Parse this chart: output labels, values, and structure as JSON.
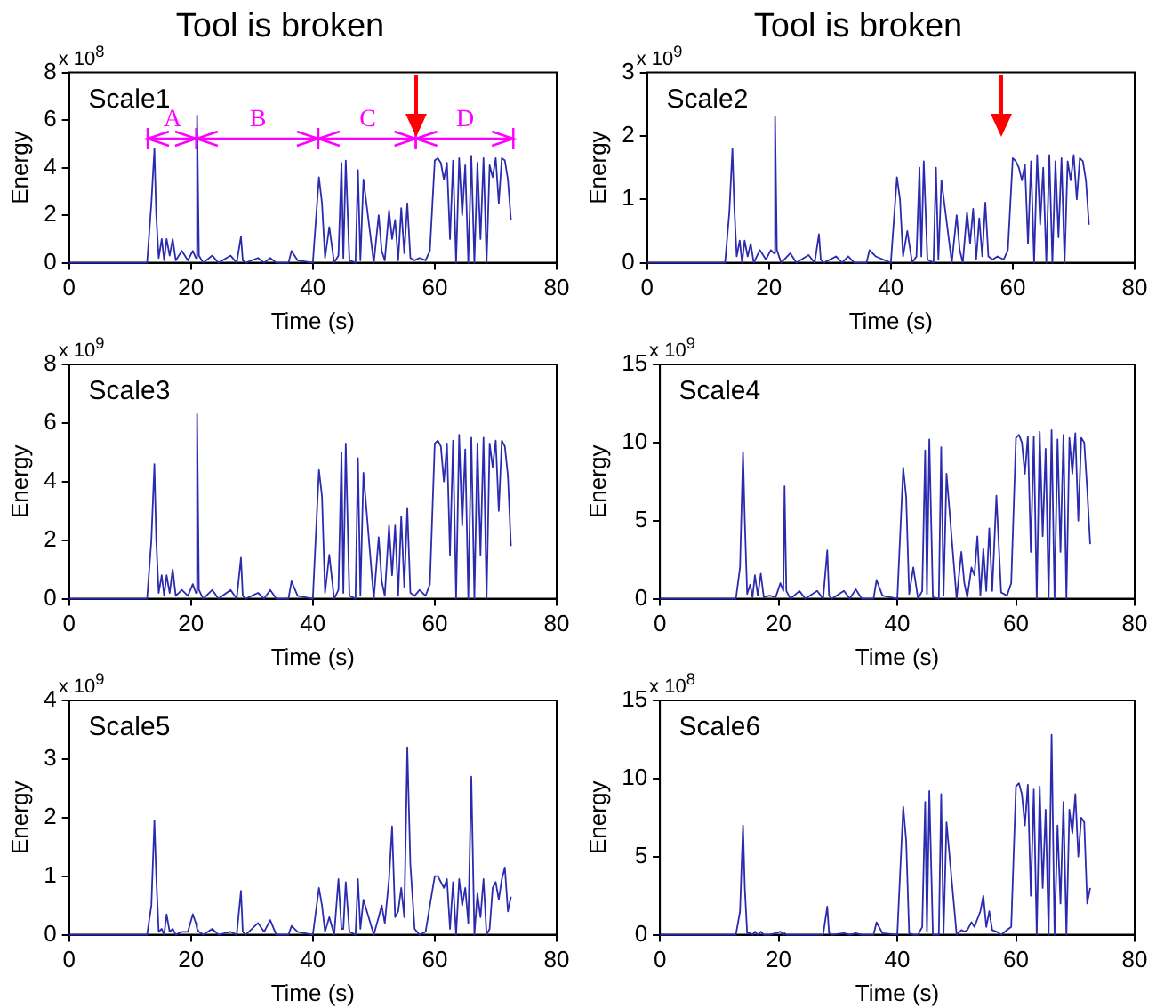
{
  "chart_data": [
    {
      "type": "line",
      "title": "Tool is broken",
      "xlabel": "Time (s)",
      "ylabel": "Energy",
      "annotations": [
        "Scale1",
        "x 10$^{8}$",
        "A",
        "B",
        "C",
        "D"
      ],
      "xlim": [
        0,
        80
      ],
      "xticks": [
        0,
        20,
        40,
        60,
        80
      ],
      "ylim": [
        0,
        8
      ],
      "yticks": [
        0,
        2,
        4,
        6,
        8
      ],
      "grid": false,
      "legend": false,
      "x": [
        0,
        12.8,
        13.5,
        14,
        14.3,
        14.7,
        15.2,
        15.6,
        16,
        16.5,
        17,
        17.5,
        18.5,
        19.5,
        20.3,
        20.8,
        21,
        21.3,
        22,
        23.5,
        24.5,
        26.5,
        27.5,
        28.2,
        28.5,
        29,
        31,
        32,
        33,
        34,
        36,
        36.5,
        37.5,
        40,
        41,
        41.5,
        42,
        42.7,
        43.5,
        44.2,
        44.7,
        45,
        45.4,
        46,
        47,
        47.4,
        47.8,
        48.3,
        50,
        50.8,
        51.3,
        51.8,
        52.5,
        53,
        53.5,
        54,
        54.5,
        55,
        55.5,
        56,
        56.7,
        57.5,
        58.5,
        59.2,
        60,
        60.5,
        61,
        61.5,
        62,
        62.5,
        63,
        63.5,
        64,
        64.5,
        65,
        65.5,
        66,
        66.5,
        67,
        67.5,
        68,
        68.5,
        69,
        69.5,
        70,
        70.5,
        71,
        71.5,
        72,
        72.5
      ],
      "series": [
        {
          "color": "#2b2bb0",
          "values": [
            0,
            0,
            2.5,
            4.8,
            2,
            0.2,
            1,
            0.1,
            1,
            0.3,
            1,
            0.1,
            0.5,
            0.1,
            0.5,
            0.2,
            6.2,
            0.3,
            0,
            0.3,
            0,
            0.3,
            0,
            1.1,
            0.1,
            0,
            0.2,
            0,
            0.2,
            0,
            0,
            0.5,
            0.1,
            0,
            3.6,
            2.5,
            0.2,
            1.5,
            0,
            0.3,
            4.2,
            0.2,
            4.3,
            0.1,
            0,
            3.9,
            0.1,
            3.5,
            0,
            2,
            0.5,
            0.1,
            2.2,
            1,
            1.8,
            0.1,
            2.3,
            0.4,
            2.5,
            0.2,
            0.1,
            0.2,
            0.1,
            0.5,
            4.3,
            4.4,
            4.2,
            3.5,
            4.2,
            1,
            4.3,
            0,
            4.4,
            2,
            4.1,
            0,
            4.5,
            0,
            4.2,
            1,
            4.4,
            0,
            4.1,
            3.6,
            4.4,
            2.5,
            4.4,
            4.3,
            3.5,
            1.8
          ]
        }
      ]
    },
    {
      "type": "line",
      "title": "Tool is broken",
      "xlabel": "Time (s)",
      "ylabel": "Energy",
      "annotations": [
        "Scale2",
        "x 10$^{9}$"
      ],
      "xlim": [
        0,
        80
      ],
      "xticks": [
        0,
        20,
        40,
        60,
        80
      ],
      "ylim": [
        0,
        3
      ],
      "yticks": [
        0,
        1,
        2,
        3
      ],
      "grid": false,
      "legend": false,
      "x": [
        0,
        12.8,
        13.5,
        14,
        14.3,
        14.7,
        15.2,
        15.6,
        16,
        16.5,
        17,
        17.5,
        18.5,
        19.5,
        20.3,
        20.8,
        21,
        21.3,
        22,
        23.5,
        24.5,
        26.5,
        27.5,
        28.2,
        28.5,
        29,
        31,
        32,
        33,
        34,
        36,
        36.5,
        37.5,
        40,
        41,
        41.5,
        42,
        42.7,
        43.5,
        44.2,
        44.7,
        45,
        45.4,
        46,
        47,
        47.4,
        47.8,
        48.3,
        50,
        50.8,
        51.3,
        51.8,
        52.5,
        53,
        53.5,
        54,
        54.5,
        55,
        55.5,
        56,
        56.7,
        57.5,
        58.5,
        59.2,
        60,
        60.5,
        61,
        61.5,
        62,
        62.5,
        63,
        63.5,
        64,
        64.5,
        65,
        65.5,
        66,
        66.5,
        67,
        67.5,
        68,
        68.5,
        69,
        69.5,
        70,
        70.5,
        71,
        71.5,
        72,
        72.5
      ],
      "series": [
        {
          "color": "#2b2bb0",
          "values": [
            0,
            0,
            0.8,
            1.8,
            0.9,
            0.1,
            0.35,
            0,
            0.35,
            0.1,
            0.3,
            0,
            0.2,
            0.05,
            0.2,
            0.15,
            2.3,
            0.2,
            0,
            0.15,
            0,
            0.12,
            0,
            0.45,
            0.05,
            0,
            0.1,
            0,
            0.1,
            0,
            0,
            0.2,
            0.1,
            0,
            1.35,
            1,
            0.1,
            0.5,
            0,
            0.1,
            1.5,
            0.1,
            1.6,
            0.05,
            0,
            1.5,
            0.05,
            1.3,
            0,
            0.75,
            0.2,
            0,
            0.8,
            0.3,
            0.85,
            0.05,
            0.7,
            0.1,
            0.95,
            0.1,
            0.05,
            0.1,
            0.05,
            0.2,
            1.65,
            1.6,
            1.5,
            1.3,
            1.55,
            0.3,
            1.6,
            0,
            1.7,
            0.6,
            1.5,
            0,
            1.7,
            0,
            1.6,
            0.4,
            1.65,
            0,
            1.6,
            1.3,
            1.7,
            1,
            1.65,
            1.6,
            1.3,
            0.6
          ]
        }
      ]
    },
    {
      "type": "line",
      "xlabel": "Time (s)",
      "ylabel": "Energy",
      "annotations": [
        "Scale3",
        "x 10$^{9}$"
      ],
      "xlim": [
        0,
        80
      ],
      "xticks": [
        0,
        20,
        40,
        60,
        80
      ],
      "ylim": [
        0,
        8
      ],
      "yticks": [
        0,
        2,
        4,
        6,
        8
      ],
      "grid": false,
      "legend": false,
      "x": [
        0,
        12.8,
        13.5,
        14,
        14.3,
        14.7,
        15.2,
        15.6,
        16,
        16.5,
        17,
        17.5,
        18.5,
        19.5,
        20.3,
        20.8,
        21,
        21.3,
        22,
        23.5,
        24.5,
        26.5,
        27.5,
        28.2,
        28.5,
        29,
        31,
        32,
        33,
        34,
        36,
        36.5,
        37.5,
        40,
        41,
        41.5,
        42,
        42.7,
        43.5,
        44.2,
        44.7,
        45,
        45.4,
        46,
        47,
        47.4,
        47.8,
        48.3,
        50,
        50.8,
        51.3,
        51.8,
        52.5,
        53,
        53.5,
        54,
        54.5,
        55,
        55.5,
        56,
        56.7,
        57.5,
        58.5,
        59.2,
        60,
        60.5,
        61,
        61.5,
        62,
        62.5,
        63,
        63.5,
        64,
        64.5,
        65,
        65.5,
        66,
        66.5,
        67,
        67.5,
        68,
        68.5,
        69,
        69.5,
        70,
        70.5,
        71,
        71.5,
        72,
        72.5
      ],
      "series": [
        {
          "color": "#2b2bb0",
          "values": [
            0,
            0,
            2,
            4.6,
            2,
            0.2,
            0.8,
            0.1,
            0.8,
            0.2,
            1,
            0.1,
            0.3,
            0.1,
            0.5,
            0.2,
            6.3,
            0.3,
            0,
            0.3,
            0,
            0.3,
            0,
            1.4,
            0.1,
            0,
            0.2,
            0,
            0.3,
            0,
            0,
            0.6,
            0.1,
            0,
            4.4,
            3.5,
            0.2,
            1.5,
            0,
            0.3,
            5,
            0.2,
            5.3,
            0.1,
            0,
            4.8,
            0.1,
            4.3,
            0,
            2.1,
            0.6,
            0.1,
            2.5,
            0.8,
            2.5,
            0.1,
            2.8,
            0.4,
            3.1,
            0.2,
            0.1,
            0.3,
            0.1,
            0.5,
            5.3,
            5.4,
            5.2,
            4,
            5.3,
            1.5,
            5.4,
            0,
            5.6,
            2.5,
            5.1,
            0,
            5.5,
            0,
            5.3,
            1.5,
            5.5,
            0,
            5.3,
            4.5,
            5.4,
            3,
            5.4,
            5.2,
            4.2,
            1.8
          ]
        }
      ]
    },
    {
      "type": "line",
      "xlabel": "Time (s)",
      "ylabel": "Energy",
      "annotations": [
        "Scale4",
        "x 10$^{9}$"
      ],
      "xlim": [
        0,
        80
      ],
      "xticks": [
        0,
        20,
        40,
        60,
        80
      ],
      "ylim": [
        0,
        15
      ],
      "yticks": [
        0,
        5,
        10,
        15
      ],
      "grid": false,
      "legend": false,
      "x": [
        0,
        12.8,
        13.5,
        14,
        14.3,
        14.7,
        15.2,
        15.6,
        16,
        16.5,
        17,
        17.5,
        18.5,
        19.5,
        20.3,
        20.8,
        21,
        21.3,
        22,
        23.5,
        24.5,
        26.5,
        27.5,
        28.2,
        28.5,
        29,
        31,
        32,
        33,
        34,
        36,
        36.5,
        37.5,
        40,
        41,
        41.5,
        42,
        42.7,
        43.5,
        44.2,
        44.7,
        45,
        45.4,
        46,
        47,
        47.4,
        47.8,
        48.3,
        50,
        50.8,
        51.3,
        51.8,
        52.5,
        53,
        53.5,
        54,
        54.5,
        55,
        55.5,
        56,
        56.7,
        57.5,
        58.5,
        59.2,
        60,
        60.5,
        61,
        61.5,
        62,
        62.5,
        63,
        63.5,
        64,
        64.5,
        65,
        65.5,
        66,
        66.5,
        67,
        67.5,
        68,
        68.5,
        69,
        69.5,
        70,
        70.5,
        71,
        71.5,
        72,
        72.5
      ],
      "series": [
        {
          "color": "#2b2bb0",
          "values": [
            0,
            0,
            2,
            9.4,
            5,
            0.3,
            0.9,
            0.1,
            1.5,
            0.2,
            1.6,
            0.1,
            0.2,
            0.1,
            1,
            0.5,
            7.2,
            0.5,
            0,
            0.5,
            0,
            0.5,
            0,
            3.1,
            0.2,
            0,
            0.5,
            0,
            0.6,
            0,
            0,
            1.2,
            0.2,
            0,
            8.4,
            6.5,
            0.3,
            2,
            0,
            0.5,
            9.5,
            0.3,
            10.2,
            0.1,
            0,
            9.7,
            0.2,
            8,
            0,
            3,
            1,
            0.1,
            2,
            1.5,
            4,
            0.2,
            3.2,
            0.5,
            4.5,
            0.5,
            6.6,
            0.4,
            0.2,
            1,
            10.3,
            10.5,
            10,
            8,
            10.4,
            3,
            10.4,
            0,
            10.7,
            4,
            9.6,
            0,
            10.8,
            0,
            10.2,
            3,
            10.5,
            0,
            10.3,
            8,
            10.6,
            5,
            10.3,
            10,
            7,
            3.5
          ]
        }
      ]
    },
    {
      "type": "line",
      "xlabel": "Time (s)",
      "ylabel": "Energy",
      "annotations": [
        "Scale5",
        "x 10$^{9}$"
      ],
      "xlim": [
        0,
        80
      ],
      "xticks": [
        0,
        20,
        40,
        60,
        80
      ],
      "ylim": [
        0,
        4
      ],
      "yticks": [
        0,
        1,
        2,
        3,
        4
      ],
      "grid": false,
      "legend": false,
      "x": [
        0,
        12.8,
        13.5,
        14,
        14.3,
        14.7,
        15.2,
        15.6,
        16,
        16.5,
        17,
        17.5,
        18.5,
        19.5,
        20.3,
        20.8,
        21,
        21.3,
        22,
        23.5,
        24.5,
        26.5,
        27.5,
        28.2,
        28.5,
        29,
        31,
        32,
        33,
        34,
        36,
        36.5,
        37.5,
        40,
        41,
        41.5,
        42,
        42.7,
        43.5,
        44.2,
        44.7,
        45,
        45.4,
        46,
        47,
        47.4,
        47.8,
        48.3,
        50,
        50.8,
        51.3,
        51.8,
        52.5,
        53,
        53.5,
        54,
        54.5,
        55,
        55.5,
        56,
        56.7,
        57.5,
        58.5,
        59.2,
        60,
        60.5,
        61,
        61.5,
        62,
        62.5,
        63,
        63.5,
        64,
        64.5,
        65,
        65.5,
        66,
        66.5,
        67,
        67.5,
        68,
        68.5,
        69,
        69.5,
        70,
        70.5,
        71,
        71.5,
        72,
        72.5
      ],
      "series": [
        {
          "color": "#2b2bb0",
          "values": [
            0,
            0,
            0.5,
            1.95,
            1,
            0.05,
            0.1,
            0,
            0.35,
            0.05,
            0.1,
            0,
            0.05,
            0.05,
            0.35,
            0.2,
            0.1,
            0.05,
            0,
            0.1,
            0,
            0.05,
            0,
            0.75,
            0.05,
            0,
            0.2,
            0.05,
            0.25,
            0,
            0,
            0.15,
            0.05,
            0,
            0.8,
            0.5,
            0.05,
            0.3,
            0,
            0.95,
            0.1,
            0.1,
            0.9,
            0.05,
            0,
            0.95,
            0.1,
            0.6,
            0,
            0.3,
            0.5,
            0.2,
            0.95,
            1.85,
            0.3,
            0.4,
            0.8,
            0.3,
            3.2,
            1.2,
            0.1,
            0,
            0.05,
            0.5,
            1,
            1,
            0.9,
            0.8,
            0.95,
            0.1,
            0.9,
            0,
            0.95,
            0.5,
            0.8,
            0.2,
            2.7,
            0,
            0.7,
            0.3,
            0.95,
            0,
            0.1,
            0.8,
            0.9,
            0.6,
            0.95,
            1.15,
            0.4,
            0.65
          ]
        }
      ]
    },
    {
      "type": "line",
      "xlabel": "Time (s)",
      "ylabel": "Energy",
      "annotations": [
        "Scale6",
        "x 10$^{8}$"
      ],
      "xlim": [
        0,
        80
      ],
      "xticks": [
        0,
        20,
        40,
        60,
        80
      ],
      "ylim": [
        0,
        15
      ],
      "yticks": [
        0,
        5,
        10,
        15
      ],
      "grid": false,
      "legend": false,
      "x": [
        0,
        12.8,
        13.5,
        14,
        14.3,
        14.7,
        15.2,
        15.6,
        16,
        16.5,
        17,
        17.5,
        18.5,
        19.5,
        20.3,
        20.8,
        21,
        21.3,
        22,
        23.5,
        24.5,
        26.5,
        27.5,
        28.2,
        28.5,
        29,
        31,
        32,
        33,
        34,
        36,
        36.5,
        37.5,
        40,
        41,
        41.5,
        42,
        42.7,
        43.5,
        44.2,
        44.7,
        45,
        45.4,
        46,
        47,
        47.4,
        47.8,
        48.3,
        50,
        50.8,
        51.3,
        51.8,
        52.5,
        53,
        53.5,
        54,
        54.5,
        55,
        55.5,
        56,
        56.7,
        57.5,
        58.5,
        59.2,
        60,
        60.5,
        61,
        61.5,
        62,
        62.5,
        63,
        63.5,
        64,
        64.5,
        65,
        65.5,
        66,
        66.5,
        67,
        67.5,
        68,
        68.5,
        69,
        69.5,
        70,
        70.5,
        71,
        71.5,
        72,
        72.5
      ],
      "series": [
        {
          "color": "#2b2bb0",
          "values": [
            0,
            0,
            1.5,
            7,
            3,
            0.1,
            0.1,
            0,
            0.2,
            0,
            0.2,
            0,
            0,
            0.1,
            0.2,
            0,
            0.1,
            0,
            0,
            0,
            0,
            0,
            0,
            1.8,
            0.1,
            0,
            0.1,
            0,
            0.1,
            0,
            0,
            0.8,
            0.1,
            0,
            8.2,
            6,
            0.1,
            0,
            0,
            0.5,
            8.5,
            0.2,
            9.2,
            0,
            0,
            9,
            0.1,
            7.2,
            0,
            0.3,
            0.2,
            0.3,
            0.8,
            0.5,
            1,
            1.5,
            2.5,
            0.5,
            1.5,
            0.3,
            0.2,
            0,
            0.3,
            0.5,
            9.5,
            9.7,
            9,
            7,
            9.6,
            2.5,
            9.3,
            0,
            9.5,
            3,
            8,
            0,
            12.8,
            0,
            7,
            2,
            8.5,
            0,
            8,
            6.5,
            9,
            5,
            7.5,
            7.2,
            2,
            3
          ]
        }
      ]
    }
  ]
}
